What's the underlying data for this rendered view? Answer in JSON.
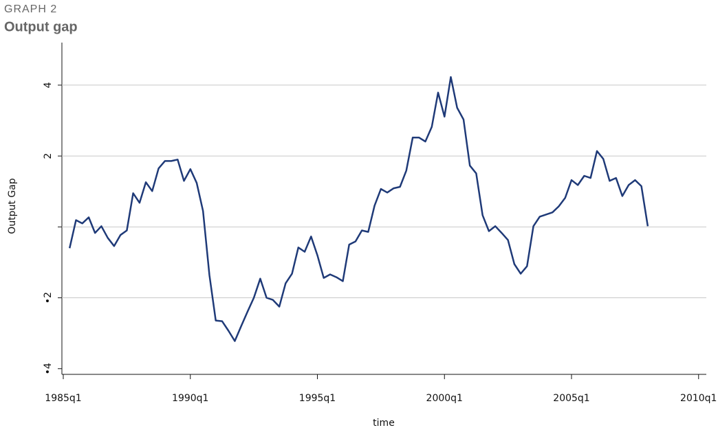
{
  "chart_data": {
    "type": "line",
    "supertitle": "GRAPH 2",
    "title": "Output gap",
    "x_label": "time",
    "y_label": "Output Gap",
    "xlim": [
      "1985q1",
      "2010q2"
    ],
    "xticks": [
      "1985q1",
      "1990q1",
      "1995q1",
      "2000q1",
      "2005q1",
      "2010q1"
    ],
    "ylim": [
      -4.16,
      5.2
    ],
    "yticks": [
      {
        "value": -4,
        "label": "•4"
      },
      {
        "value": -2,
        "label": "•2"
      },
      {
        "value": 0,
        "label": null
      },
      4,
      2
    ],
    "grid": true,
    "x": [
      "1985q2",
      "1985q3",
      "1985q4",
      "1986q1",
      "1986q2",
      "1986q3",
      "1986q4",
      "1987q1",
      "1987q2",
      "1987q3",
      "1987q4",
      "1988q1",
      "1988q2",
      "1988q3",
      "1988q4",
      "1989q1",
      "1989q2",
      "1989q3",
      "1989q4",
      "1990q1",
      "1990q2",
      "1990q3",
      "1990q4",
      "1991q1",
      "1991q2",
      "1991q3",
      "1991q4",
      "1992q1",
      "1992q2",
      "1992q3",
      "1992q4",
      "1993q1",
      "1993q2",
      "1993q3",
      "1993q4",
      "1994q1",
      "1994q2",
      "1994q3",
      "1994q4",
      "1995q1",
      "1995q2",
      "1995q3",
      "1995q4",
      "1996q1",
      "1996q2",
      "1996q3",
      "1996q4",
      "1997q1",
      "1997q2",
      "1997q3",
      "1997q4",
      "1998q1",
      "1998q2",
      "1998q3",
      "1998q4",
      "1999q1",
      "1999q2",
      "1999q3",
      "1999q4",
      "2000q1",
      "2000q2",
      "2000q3",
      "2000q4",
      "2001q1",
      "2001q2",
      "2001q3",
      "2001q4",
      "2002q1",
      "2002q2",
      "2002q3",
      "2002q4",
      "2003q1",
      "2003q2",
      "2003q3",
      "2003q4",
      "2004q1",
      "2004q2",
      "2004q3",
      "2004q4",
      "2005q1",
      "2005q2",
      "2005q3",
      "2005q4",
      "2006q1",
      "2006q2",
      "2006q3",
      "2006q4",
      "2007q1",
      "2007q2",
      "2007q3",
      "2007q4",
      "2008q1"
    ],
    "series": [
      {
        "name": "Output Gap",
        "color": "#1f3a78",
        "values": [
          -0.6,
          0.19,
          0.1,
          0.27,
          -0.17,
          0.02,
          -0.31,
          -0.54,
          -0.23,
          -0.1,
          0.95,
          0.68,
          1.26,
          1.01,
          1.65,
          1.86,
          1.86,
          1.9,
          1.3,
          1.63,
          1.24,
          0.45,
          -1.36,
          -2.64,
          -2.66,
          -2.93,
          -3.22,
          -2.8,
          -2.39,
          -2.0,
          -1.46,
          -2.0,
          -2.06,
          -2.25,
          -1.59,
          -1.32,
          -0.58,
          -0.7,
          -0.27,
          -0.8,
          -1.44,
          -1.34,
          -1.42,
          -1.53,
          -0.5,
          -0.41,
          -0.1,
          -0.14,
          0.6,
          1.07,
          0.97,
          1.09,
          1.13,
          1.59,
          2.52,
          2.52,
          2.41,
          2.82,
          3.79,
          3.11,
          4.23,
          3.36,
          3.03,
          1.73,
          1.51,
          0.33,
          -0.12,
          0.02,
          -0.17,
          -0.37,
          -1.05,
          -1.32,
          -1.11,
          0.02,
          0.29,
          0.35,
          0.41,
          0.58,
          0.82,
          1.32,
          1.18,
          1.44,
          1.38,
          2.14,
          1.92,
          1.3,
          1.38,
          0.87,
          1.18,
          1.32,
          1.15,
          0.02
        ]
      }
    ]
  }
}
